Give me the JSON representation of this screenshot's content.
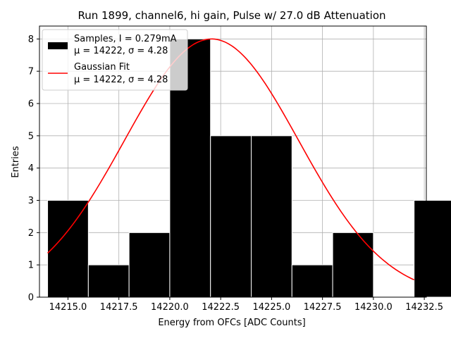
{
  "chart_data": {
    "type": "bar",
    "title": "Run 1899, channel6, hi gain, Pulse w/ 27.0 dB Attenuation",
    "xlabel": "Energy from OFCs [ADC Counts]",
    "ylabel": "Entries",
    "xlim": [
      14213.6,
      14232.6
    ],
    "ylim": [
      0,
      8.4
    ],
    "xticks": [
      14215.0,
      14217.5,
      14220.0,
      14222.5,
      14225.0,
      14227.5,
      14230.0,
      14232.5
    ],
    "xtick_labels": [
      "14215.0",
      "14217.5",
      "14220.0",
      "14222.5",
      "14225.0",
      "14227.5",
      "14230.0",
      "14232.5"
    ],
    "yticks": [
      0,
      1,
      2,
      3,
      4,
      5,
      6,
      7,
      8
    ],
    "ytick_labels": [
      "0",
      "1",
      "2",
      "3",
      "4",
      "5",
      "6",
      "7",
      "8"
    ],
    "grid": true,
    "legend_position": "top-left",
    "histogram": {
      "name_line1": "Samples, I = 0.279mA",
      "name_line2": "μ = 14222, σ = 4.28",
      "color": "#000000",
      "edge_color": "#ffffff",
      "bins": [
        {
          "x0": 14214.0,
          "x1": 14216.0,
          "count": 3
        },
        {
          "x0": 14216.0,
          "x1": 14218.0,
          "count": 1
        },
        {
          "x0": 14218.0,
          "x1": 14220.0,
          "count": 2
        },
        {
          "x0": 14220.0,
          "x1": 14222.0,
          "count": 8
        },
        {
          "x0": 14222.0,
          "x1": 14224.0,
          "count": 5
        },
        {
          "x0": 14224.0,
          "x1": 14226.0,
          "count": 5
        },
        {
          "x0": 14226.0,
          "x1": 14228.0,
          "count": 1
        },
        {
          "x0": 14228.0,
          "x1": 14230.0,
          "count": 2
        },
        {
          "x0": 14230.0,
          "x1": 14232.0,
          "count": 0
        },
        {
          "x0": 14232.0,
          "x1": 14234.0,
          "count": 3
        }
      ]
    },
    "fit": {
      "name_line1": "Gaussian Fit",
      "name_line2": "μ = 14222, σ = 4.28",
      "color": "#ff0000",
      "x_start": 14214.0,
      "x_end": 14232.0,
      "mu": 14222.05,
      "sigma": 4.28,
      "amplitude": 8.0
    }
  }
}
